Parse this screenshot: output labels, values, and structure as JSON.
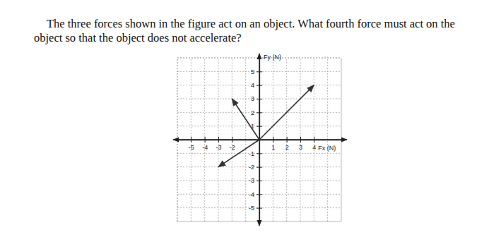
{
  "chart_data": {
    "type": "vector",
    "title": "The three forces shown in the figure act on an object.  What fourth force must act on the object so that the object does not accelerate?",
    "x_label": "Fx (N)",
    "y_label": "Fy (N)",
    "x": [
      4,
      -2,
      -3
    ],
    "values": [
      4,
      3,
      -2
    ],
    "color": "#333333",
    "xlim": [
      -6,
      6
    ],
    "ylim": [
      -6,
      6
    ],
    "xticks": [
      -5,
      -4,
      -3,
      -2,
      1,
      2,
      3,
      4
    ],
    "yticks": [
      -5,
      -4,
      -3,
      -2,
      -1,
      1,
      2,
      3,
      4,
      5
    ],
    "grid": true
  }
}
